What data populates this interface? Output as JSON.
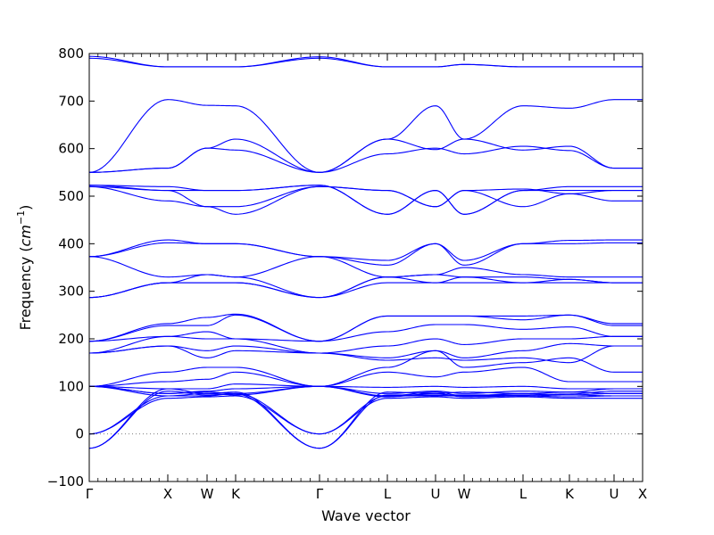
{
  "chart_data": {
    "type": "line",
    "title": "",
    "xlabel": "Wave vector",
    "ylabel": "Frequency",
    "ylabel_unit": "cm",
    "ylabel_exponent": "−1",
    "ylim": [
      -100,
      800
    ],
    "yticks": [
      "−100",
      "0",
      "100",
      "200",
      "300",
      "400",
      "500",
      "600",
      "700",
      "800"
    ],
    "ytick_values": [
      -100,
      0,
      100,
      200,
      300,
      400,
      500,
      600,
      700,
      800
    ],
    "xlim": [
      0,
      31
    ],
    "points": [
      {
        "label": "Γ",
        "x": 0
      },
      {
        "label": "X",
        "x": 4.4
      },
      {
        "label": "W",
        "x": 6.6
      },
      {
        "label": "K",
        "x": 8.2
      },
      {
        "label": "Γ",
        "x": 12.9
      },
      {
        "label": "L",
        "x": 16.7
      },
      {
        "label": "U",
        "x": 19.4
      },
      {
        "label": "W",
        "x": 21
      },
      {
        "label": "L",
        "x": 24.3
      },
      {
        "label": "K",
        "x": 26.9
      },
      {
        "label": "U",
        "x": 29.4
      },
      {
        "label": "X",
        "x": 31
      }
    ],
    "zero_line": {
      "y": 0,
      "style": "dotted",
      "color": "#7f7f7f"
    },
    "grid": false,
    "legend": false,
    "line_color": "#0000ff",
    "series": [
      {
        "values": [
          794,
          772,
          772,
          772,
          793,
          772,
          772,
          777,
          772,
          772,
          772,
          772
        ]
      },
      {
        "values": [
          790,
          772,
          772,
          772,
          790,
          772,
          772,
          777,
          772,
          772,
          772,
          772
        ]
      },
      {
        "values": [
          550,
          703,
          691,
          690,
          550,
          620,
          690,
          620,
          690,
          685,
          703,
          703
        ]
      },
      {
        "values": [
          550,
          559,
          601,
          597,
          550,
          620,
          598,
          620,
          597,
          605,
          559,
          559
        ]
      },
      {
        "values": [
          550,
          559,
          601,
          620,
          550,
          589,
          601,
          589,
          605,
          596,
          559,
          559
        ]
      },
      {
        "values": [
          523,
          520,
          512,
          512,
          523,
          462,
          512,
          462,
          512,
          520,
          520,
          520
        ]
      },
      {
        "values": [
          523,
          512,
          512,
          512,
          523,
          462,
          512,
          462,
          512,
          512,
          512,
          512
        ]
      },
      {
        "values": [
          520,
          512,
          478,
          478,
          520,
          512,
          478,
          512,
          478,
          505,
          512,
          512
        ]
      },
      {
        "values": [
          520,
          490,
          478,
          462,
          520,
          512,
          478,
          512,
          515,
          505,
          490,
          490
        ]
      },
      {
        "values": [
          373,
          408,
          400,
          400,
          373,
          365,
          400,
          365,
          400,
          407,
          408,
          408
        ]
      },
      {
        "values": [
          373,
          402,
          400,
          400,
          373,
          355,
          400,
          355,
          400,
          400,
          402,
          402
        ]
      },
      {
        "values": [
          373,
          330,
          335,
          330,
          373,
          330,
          335,
          350,
          335,
          330,
          330,
          330
        ]
      },
      {
        "values": [
          287,
          318,
          335,
          330,
          287,
          330,
          335,
          330,
          330,
          325,
          318,
          318
        ]
      },
      {
        "values": [
          287,
          318,
          318,
          318,
          287,
          330,
          318,
          330,
          318,
          325,
          318,
          318
        ]
      },
      {
        "values": [
          287,
          318,
          318,
          318,
          287,
          318,
          318,
          318,
          318,
          318,
          318,
          318
        ]
      },
      {
        "values": [
          195,
          232,
          245,
          252,
          195,
          248,
          248,
          248,
          248,
          250,
          232,
          232
        ]
      },
      {
        "values": [
          195,
          228,
          228,
          250,
          195,
          248,
          248,
          248,
          240,
          250,
          228,
          228
        ]
      },
      {
        "values": [
          195,
          205,
          215,
          200,
          195,
          215,
          230,
          230,
          220,
          225,
          205,
          205
        ]
      },
      {
        "values": [
          170,
          205,
          200,
          200,
          170,
          185,
          200,
          188,
          200,
          200,
          205,
          205
        ]
      },
      {
        "values": [
          170,
          185,
          175,
          185,
          170,
          160,
          175,
          160,
          175,
          190,
          185,
          185
        ]
      },
      {
        "values": [
          170,
          185,
          160,
          175,
          170,
          155,
          160,
          155,
          160,
          150,
          185,
          185
        ]
      },
      {
        "values": [
          100,
          130,
          140,
          140,
          100,
          140,
          175,
          140,
          150,
          160,
          130,
          130
        ]
      },
      {
        "values": [
          100,
          110,
          115,
          130,
          100,
          130,
          120,
          130,
          140,
          110,
          110,
          110
        ]
      },
      {
        "values": [
          100,
          95,
          95,
          105,
          100,
          98,
          100,
          98,
          100,
          95,
          95,
          95
        ]
      },
      {
        "values": [
          100,
          85,
          90,
          95,
          100,
          85,
          90,
          85,
          90,
          88,
          85,
          85
        ]
      },
      {
        "values": [
          100,
          85,
          88,
          85,
          100,
          80,
          88,
          80,
          85,
          82,
          85,
          85
        ]
      },
      {
        "values": [
          100,
          80,
          85,
          82,
          100,
          78,
          85,
          78,
          80,
          78,
          80,
          80
        ]
      },
      {
        "values": [
          0,
          80,
          80,
          85,
          0,
          80,
          80,
          80,
          80,
          82,
          80,
          80
        ]
      },
      {
        "values": [
          0,
          75,
          78,
          80,
          0,
          75,
          78,
          75,
          78,
          75,
          75,
          75
        ]
      },
      {
        "values": [
          -30,
          95,
          85,
          88,
          -30,
          88,
          85,
          88,
          85,
          88,
          95,
          95
        ]
      },
      {
        "values": [
          -30,
          90,
          82,
          84,
          -30,
          82,
          82,
          82,
          82,
          84,
          90,
          90
        ]
      }
    ]
  }
}
